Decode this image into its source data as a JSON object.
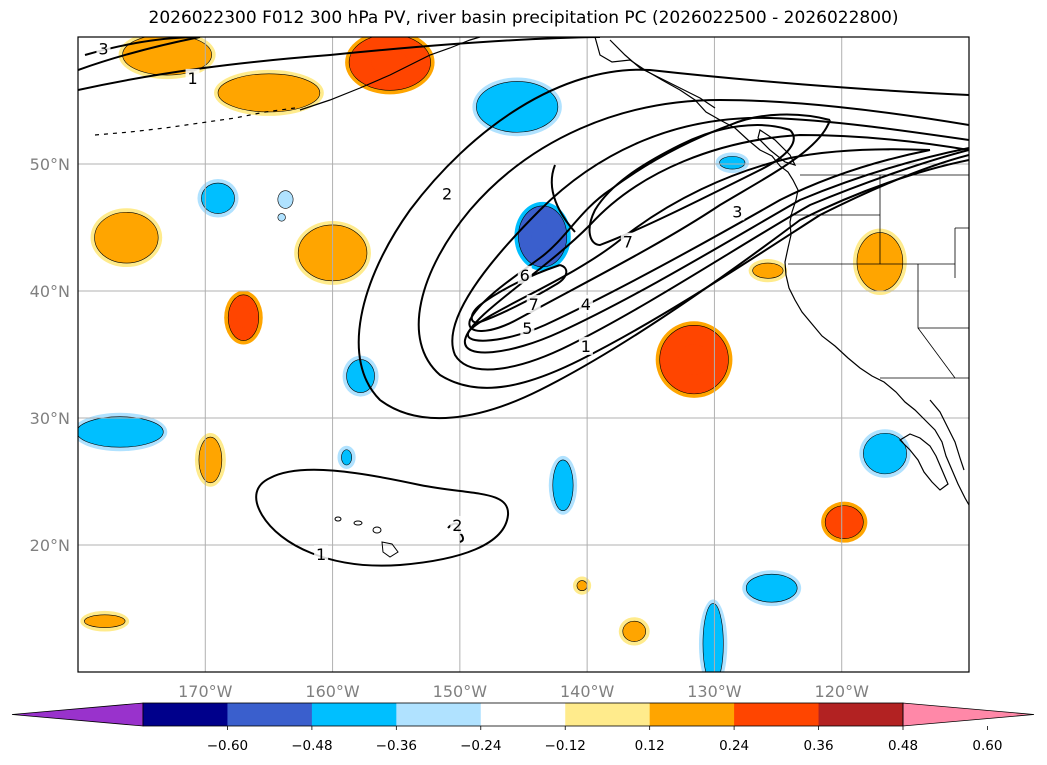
{
  "title": "2026022300 F012 300 hPa PV, river basin precipitation PC (2026022500 - 2026022800)",
  "map": {
    "lon_range": [
      -180,
      -110
    ],
    "lat_range": [
      10,
      60
    ],
    "lat_ticks": [
      {
        "value": 50,
        "label": "50°N"
      },
      {
        "value": 40,
        "label": "40°N"
      },
      {
        "value": 30,
        "label": "30°N"
      },
      {
        "value": 20,
        "label": "20°N"
      }
    ],
    "lon_ticks": [
      {
        "value": -170,
        "label": "170°W"
      },
      {
        "value": -160,
        "label": "160°W"
      },
      {
        "value": -150,
        "label": "150°W"
      },
      {
        "value": -140,
        "label": "140°W"
      },
      {
        "value": -130,
        "label": "130°W"
      },
      {
        "value": -120,
        "label": "120°W"
      }
    ],
    "gridlines": true
  },
  "pv_contours": {
    "color": "#000000",
    "labels": [
      {
        "text": "3",
        "lon": -178,
        "lat": 59
      },
      {
        "text": "1",
        "lon": -171,
        "lat": 56.7
      },
      {
        "text": "2",
        "lon": -151,
        "lat": 47.6
      },
      {
        "text": "7",
        "lon": -136.8,
        "lat": 43.8
      },
      {
        "text": "3",
        "lon": -128.2,
        "lat": 46.2
      },
      {
        "text": "6",
        "lon": -144.9,
        "lat": 41.2
      },
      {
        "text": "7",
        "lon": -144.2,
        "lat": 38.9
      },
      {
        "text": "4",
        "lon": -140.1,
        "lat": 38.9
      },
      {
        "text": "5",
        "lon": -144.7,
        "lat": 37.0
      },
      {
        "text": "1",
        "lon": -140.1,
        "lat": 35.6
      },
      {
        "text": "2",
        "lon": -150.2,
        "lat": 21.5
      },
      {
        "text": "1",
        "lon": -160.9,
        "lat": 19.2
      }
    ]
  },
  "precip_pc_colorbar": {
    "levels": [
      -0.72,
      -0.6,
      -0.48,
      -0.36,
      -0.24,
      -0.12,
      0.12,
      0.24,
      0.36,
      0.48,
      0.6,
      0.72
    ],
    "tick_labels": [
      "−0.60",
      "−0.48",
      "−0.36",
      "−0.24",
      "−0.12",
      "0.12",
      "0.24",
      "0.36",
      "0.48",
      "0.60"
    ],
    "colors": {
      "under": "#9932cc",
      "bins": [
        "#9932cc",
        "#00008b",
        "#3a5fcd",
        "#00bfff",
        "#b0e2ff",
        "#ffffff",
        "#ffeb8c",
        "#ffa500",
        "#ff4500",
        "#b22222",
        "#ff88a8"
      ],
      "over": "#ff88a8"
    },
    "extend": "both"
  },
  "precip_patches": [
    {
      "lon": -173,
      "lat": 58.6,
      "rx": 3.5,
      "ry": 1.6,
      "value": 0.3
    },
    {
      "lon": -165,
      "lat": 55.6,
      "rx": 4.0,
      "ry": 1.5,
      "value": 0.33
    },
    {
      "lon": -155.5,
      "lat": 58,
      "rx": 3.2,
      "ry": 2.2,
      "value": 0.4
    },
    {
      "lon": -176.2,
      "lat": 44.2,
      "rx": 2.5,
      "ry": 2.0,
      "value": 0.33
    },
    {
      "lon": -160,
      "lat": 43,
      "rx": 2.7,
      "ry": 2.2,
      "value": 0.3
    },
    {
      "lon": -167,
      "lat": 37.9,
      "rx": 1.2,
      "ry": 1.8,
      "value": 0.38
    },
    {
      "lon": -169.6,
      "lat": 26.7,
      "rx": 0.9,
      "ry": 1.8,
      "value": 0.3
    },
    {
      "lon": -131.6,
      "lat": 34.6,
      "rx": 2.7,
      "ry": 2.7,
      "value": 0.4
    },
    {
      "lon": -117,
      "lat": 42.3,
      "rx": 1.8,
      "ry": 2.3,
      "value": 0.35
    },
    {
      "lon": -119.8,
      "lat": 21.8,
      "rx": 1.5,
      "ry": 1.3,
      "value": 0.4
    },
    {
      "lon": -136.3,
      "lat": 13.2,
      "rx": 0.9,
      "ry": 0.8,
      "value": 0.28
    },
    {
      "lon": -140.4,
      "lat": 16.8,
      "rx": 0.4,
      "ry": 0.4,
      "value": 0.26
    },
    {
      "lon": -177.9,
      "lat": 14,
      "rx": 1.6,
      "ry": 0.5,
      "value": 0.3
    },
    {
      "lon": -125.8,
      "lat": 41.6,
      "rx": 1.2,
      "ry": 0.6,
      "value": 0.28
    },
    {
      "lon": -145.5,
      "lat": 54.5,
      "rx": 3.2,
      "ry": 2.0,
      "value": -0.3
    },
    {
      "lon": -169,
      "lat": 47.3,
      "rx": 1.3,
      "ry": 1.2,
      "value": -0.3
    },
    {
      "lon": -176.7,
      "lat": 28.9,
      "rx": 3.4,
      "ry": 1.2,
      "value": -0.3
    },
    {
      "lon": -143.5,
      "lat": 44.3,
      "rx": 1.9,
      "ry": 2.4,
      "value": -0.38
    },
    {
      "lon": -157.8,
      "lat": 33.3,
      "rx": 1.1,
      "ry": 1.3,
      "value": -0.3
    },
    {
      "lon": -158.9,
      "lat": 26.9,
      "rx": 0.4,
      "ry": 0.6,
      "value": -0.26
    },
    {
      "lon": -141.9,
      "lat": 24.7,
      "rx": 0.8,
      "ry": 2.0,
      "value": -0.3
    },
    {
      "lon": -130.1,
      "lat": 12.2,
      "rx": 0.8,
      "ry": 3.2,
      "value": -0.32
    },
    {
      "lon": -125.5,
      "lat": 16.6,
      "rx": 2.0,
      "ry": 1.1,
      "value": -0.35
    },
    {
      "lon": -116.6,
      "lat": 27.2,
      "rx": 1.7,
      "ry": 1.6,
      "value": -0.35
    },
    {
      "lon": -128.6,
      "lat": 50.1,
      "rx": 1.0,
      "ry": 0.5,
      "value": -0.26
    },
    {
      "lon": -163.7,
      "lat": 47.2,
      "rx": 0.6,
      "ry": 0.7,
      "value": -0.14
    },
    {
      "lon": -164,
      "lat": 45.8,
      "rx": 0.3,
      "ry": 0.3,
      "value": -0.14
    }
  ]
}
